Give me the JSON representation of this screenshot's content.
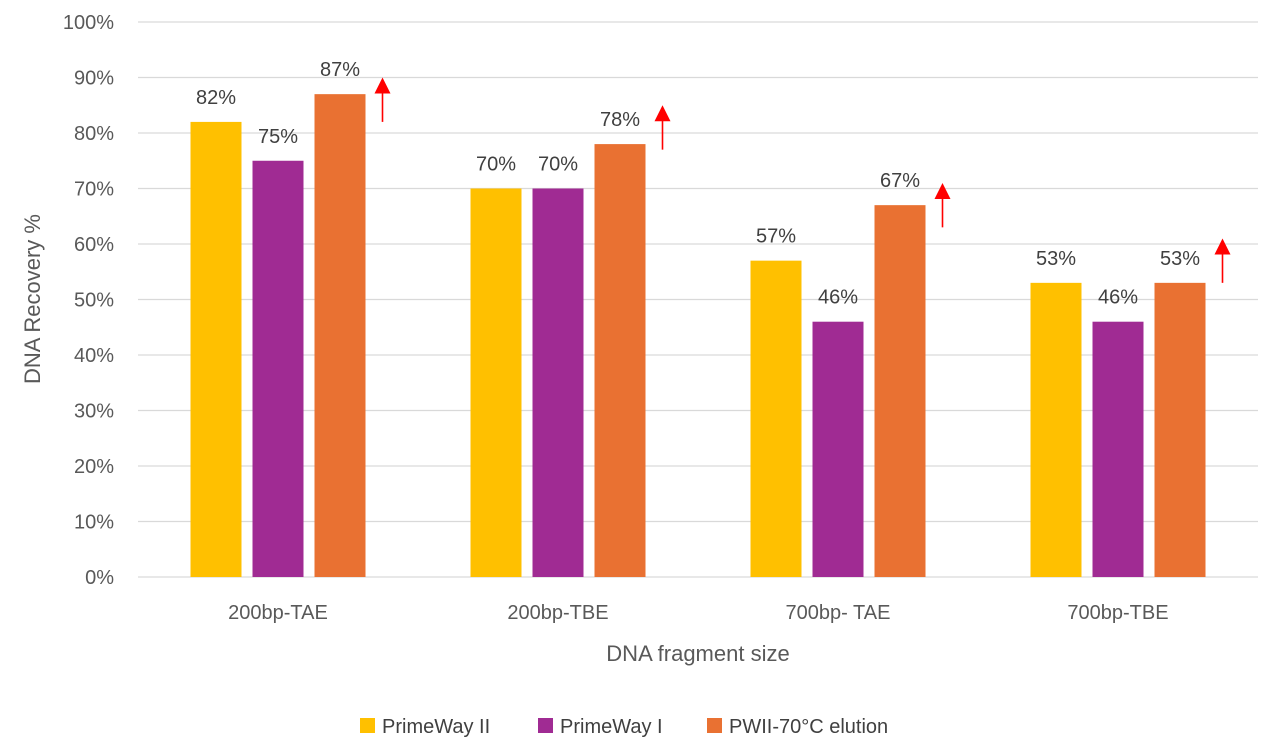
{
  "chart_data": {
    "type": "bar",
    "title": "",
    "xlabel": "DNA fragment size",
    "ylabel": "DNA Recovery %",
    "ylim": [
      0,
      100
    ],
    "yticks": [
      0,
      10,
      20,
      30,
      40,
      50,
      60,
      70,
      80,
      90,
      100
    ],
    "ytick_labels": [
      "0%",
      "10%",
      "20%",
      "30%",
      "40%",
      "50%",
      "60%",
      "70%",
      "80%",
      "90%",
      "100%"
    ],
    "grid": true,
    "legend_position": "bottom",
    "categories": [
      "200bp-TAE",
      "200bp-TBE",
      "700bp- TAE",
      "700bp-TBE"
    ],
    "series": [
      {
        "name": "PrimeWay II",
        "color": "#FFC000",
        "values": [
          82,
          70,
          57,
          53
        ],
        "labels": [
          "82%",
          "70%",
          "57%",
          "53%"
        ]
      },
      {
        "name": "PrimeWay I",
        "color": "#A02B93",
        "values": [
          75,
          70,
          46,
          46
        ],
        "labels": [
          "75%",
          "70%",
          "46%",
          "46%"
        ]
      },
      {
        "name": "PWII-70°C elution",
        "color": "#E97132",
        "values": [
          87,
          78,
          67,
          53
        ],
        "labels": [
          "87%",
          "78%",
          "67%",
          "53%"
        ]
      }
    ],
    "annotations": {
      "type": "up-arrow",
      "color": "#FF0000",
      "note": "red upward arrow beside each PWII-70°C elution bar",
      "arrows": [
        {
          "category": "200bp-TAE",
          "from": 82,
          "to": 90
        },
        {
          "category": "200bp-TBE",
          "from": 77,
          "to": 85
        },
        {
          "category": "700bp- TAE",
          "from": 63,
          "to": 71
        },
        {
          "category": "700bp-TBE",
          "from": 53,
          "to": 61
        }
      ]
    },
    "gridline_color": "#D9D9D9"
  }
}
